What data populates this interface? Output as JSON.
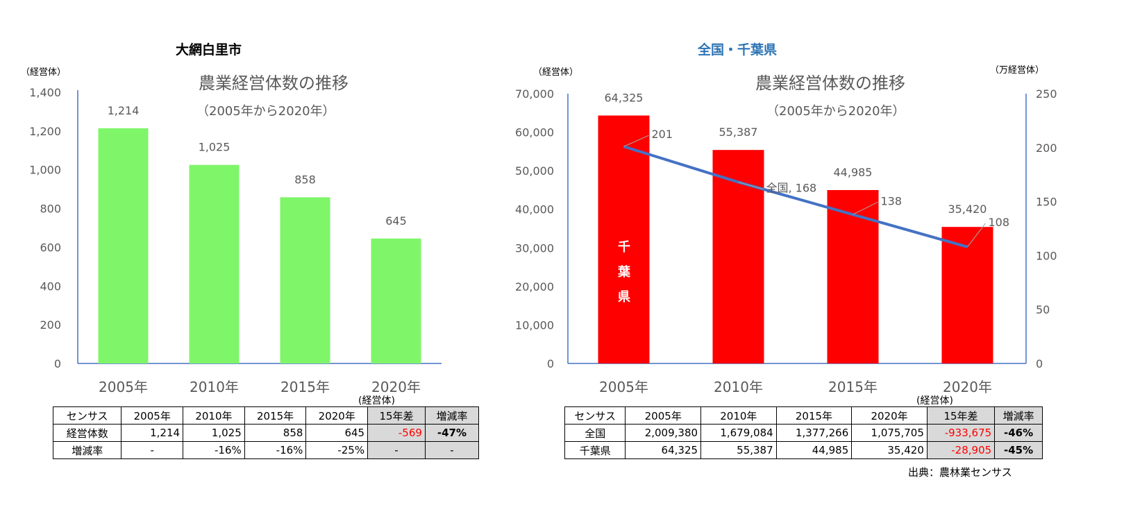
{
  "colors": {
    "left_bar": "#7ff56a",
    "right_bar": "#ff0000",
    "line": "#4472c4",
    "axis": "#4472c4",
    "negative": "#ff0000",
    "title_right": "#2e74b5"
  },
  "chart_data": [
    {
      "type": "bar",
      "heading": "大網白里市",
      "title": "農業経営体数の推移",
      "subtitle": "（2005年から2020年）",
      "ylabel": "（経営体）",
      "categories": [
        "2005年",
        "2010年",
        "2015年",
        "2020年"
      ],
      "values": [
        1214,
        1025,
        858,
        645
      ],
      "value_labels": [
        "1,214",
        "1,025",
        "858",
        "645"
      ],
      "ylim": [
        0,
        1400
      ],
      "yticks": [
        "0",
        "200",
        "400",
        "600",
        "800",
        "1,000",
        "1,200",
        "1,400"
      ]
    },
    {
      "type": "bar+line",
      "heading": "全国・千葉県",
      "title": "農業経営体数の推移",
      "subtitle": "（2005年から2020年）",
      "ylabel": "（経営体）",
      "y2label": "（万経営体）",
      "categories": [
        "2005年",
        "2010年",
        "2015年",
        "2020年"
      ],
      "series": [
        {
          "name": "千葉県",
          "type": "bar",
          "axis": "left",
          "values": [
            64325,
            55387,
            44985,
            35420
          ],
          "value_labels": [
            "64,325",
            "55,387",
            "44,985",
            "35,420"
          ],
          "bar_text": [
            "千",
            "葉",
            "県"
          ]
        },
        {
          "name": "全国",
          "type": "line",
          "axis": "right",
          "values": [
            201,
            168,
            138,
            108
          ],
          "value_labels": [
            "201",
            "全国, 168",
            "138",
            "108"
          ]
        }
      ],
      "ylim": [
        0,
        70000
      ],
      "yticks": [
        "0",
        "10,000",
        "20,000",
        "30,000",
        "40,000",
        "50,000",
        "60,000",
        "70,000"
      ],
      "y2lim": [
        0,
        250
      ],
      "y2ticks": [
        "0",
        "50",
        "100",
        "150",
        "200",
        "250"
      ]
    }
  ],
  "left_table": {
    "unit": "(経営体)",
    "header": [
      "センサス",
      "2005年",
      "2010年",
      "2015年",
      "2020年",
      "15年差",
      "増減率"
    ],
    "rows": [
      [
        "経営体数",
        "1,214",
        "1,025",
        "858",
        "645",
        "-569",
        "-47%"
      ],
      [
        "増減率",
        "-",
        "-16%",
        "-16%",
        "-25%",
        "-",
        "-"
      ]
    ]
  },
  "right_table": {
    "unit": "(経営体)",
    "header": [
      "センサス",
      "2005年",
      "2010年",
      "2015年",
      "2020年",
      "15年差",
      "増減率"
    ],
    "rows": [
      [
        "全国",
        "2,009,380",
        "1,679,084",
        "1,377,266",
        "1,075,705",
        "-933,675",
        "-46%"
      ],
      [
        "千葉県",
        "64,325",
        "55,387",
        "44,985",
        "35,420",
        "-28,905",
        "-45%"
      ]
    ]
  },
  "source": "出典：農林業センサス"
}
